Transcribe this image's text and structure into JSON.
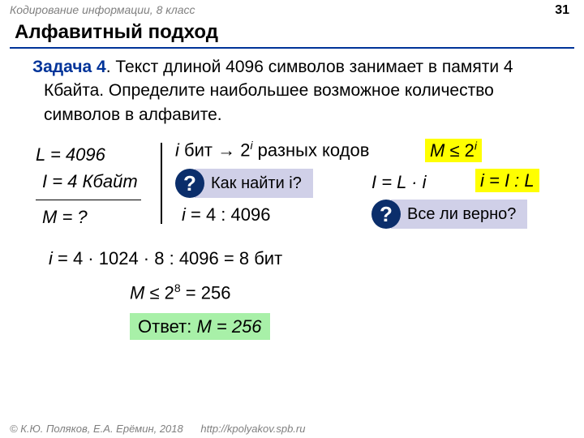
{
  "header": {
    "course": "Кодирование информации, 8 класс",
    "page": "31"
  },
  "title": "Алфавитный подход",
  "task": {
    "label": "Задача 4",
    "text": ". Текст длиной 4096 символов занимает в памяти 4 Кбайта. Определите наибольшее возможное количество символов в алфавите."
  },
  "given": {
    "L": "L = 4096",
    "I": "I = 4 Кбайт",
    "M": "M = ?"
  },
  "codes": {
    "prefix_i": "i",
    "bit": " бит → 2",
    "suffix": " разных кодов"
  },
  "M_bound": {
    "M": "M",
    "le": " ≤ 2",
    "i": "i"
  },
  "q1": "Как найти i?",
  "formula_IL": "I = L · i",
  "formula_iIL": "i = I : L",
  "i_div": {
    "i": "i",
    "rest": " =  4 : 4096"
  },
  "q2": "Все ли верно?",
  "i_calc": {
    "i": "i",
    "rest": " =  4 · 1024 · 8 : 4096 = 8 ",
    "bit": "бит"
  },
  "M_final": {
    "M": "M",
    "rest": " ≤ 2",
    "exp": "8",
    "eq": " = 256"
  },
  "answer": {
    "label": "Ответ: ",
    "M": "M",
    "val": " = 256"
  },
  "footer": {
    "copy": "© К.Ю. Поляков, Е.А. Ерёмин, 2018",
    "link": "http://kpolyakov.spb.ru"
  }
}
